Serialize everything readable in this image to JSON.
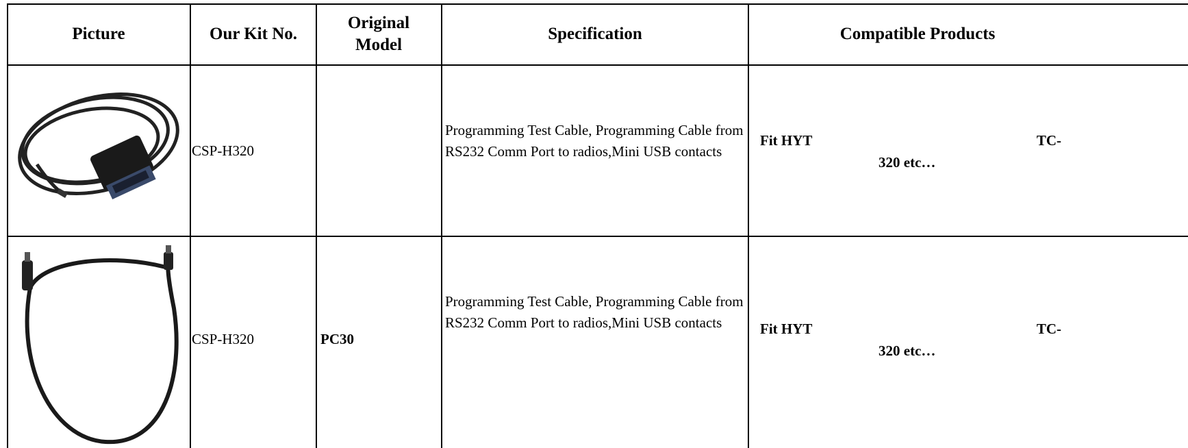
{
  "table": {
    "headers": [
      "Picture",
      "Our Kit No.",
      "Original Model",
      "Specification",
      "Compatible Products"
    ],
    "rows": [
      {
        "kit_no": "CSP-H320",
        "original_model": null,
        "specification": "Programming Test Cable, Programming Cable from RS232 Comm Port to radios,Mini USB contacts",
        "compatible": [
          "Fit HYT",
          "TC-",
          "320 etc…"
        ]
      },
      {
        "kit_no": "CSP-H320",
        "original_model": "PC30",
        "specification": "Programming Test Cable, Programming Cable from RS232 Comm Port to radios,Mini USB contacts",
        "compatible": [
          "Fit HYT",
          "TC-",
          "320 etc…"
        ]
      }
    ]
  }
}
